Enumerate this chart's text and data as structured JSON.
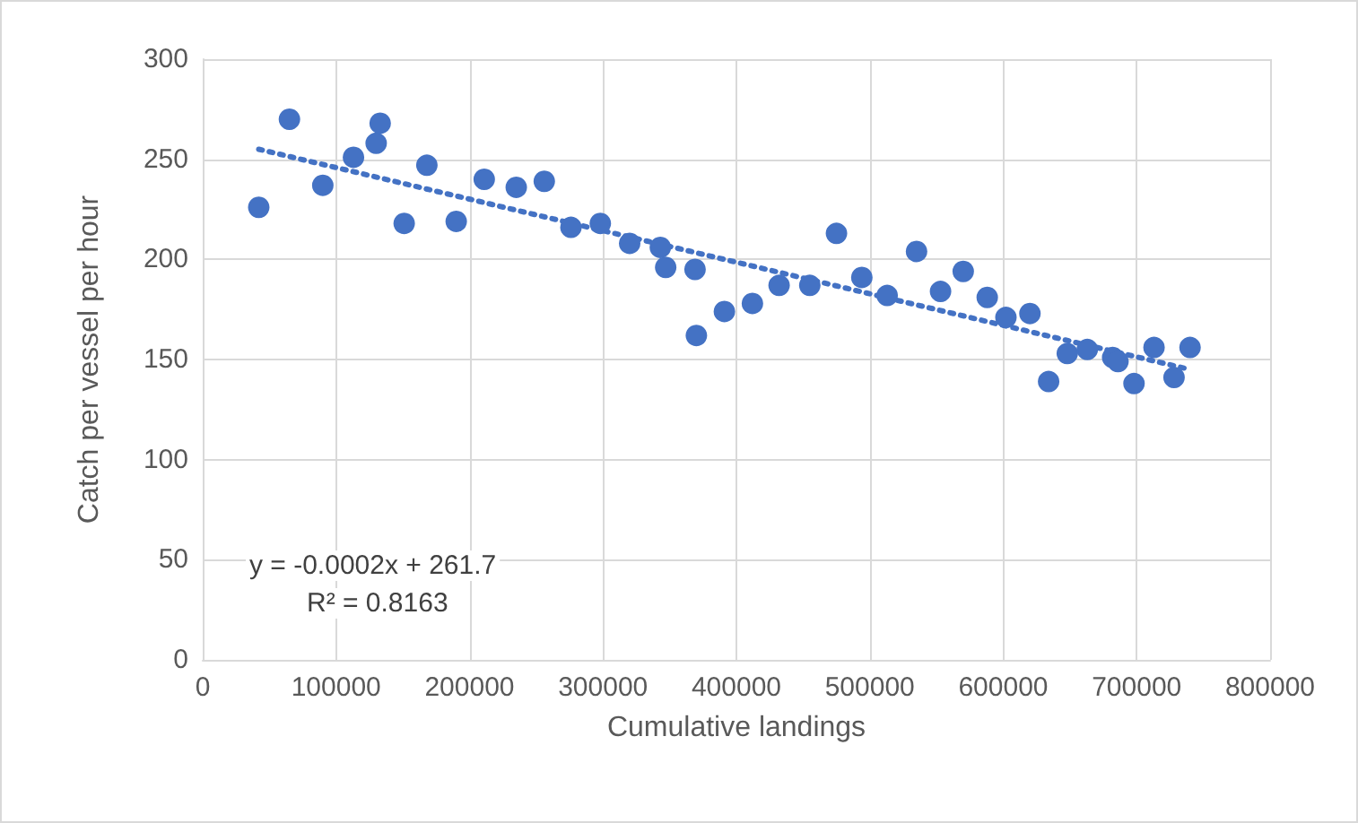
{
  "chart_data": {
    "type": "scatter",
    "xlabel": "Cumulative landings",
    "ylabel": "Catch per vessel per hour",
    "annotations": [
      "y = -0.0002x + 261.7",
      "R² = 0.8163"
    ],
    "xlim": [
      0,
      800000
    ],
    "xticks": [
      0,
      100000,
      200000,
      300000,
      400000,
      500000,
      600000,
      700000,
      800000
    ],
    "ylim": [
      0,
      300
    ],
    "yticks": [
      0,
      50,
      100,
      150,
      200,
      250,
      300
    ],
    "grid": true,
    "marker": "circle",
    "series": [
      {
        "color": "#4472c4",
        "x": [
          42000,
          65000,
          90000,
          113000,
          130000,
          133000,
          151000,
          168000,
          190000,
          211000,
          235000,
          256000,
          276000,
          298000,
          320000,
          343000,
          347000,
          369000,
          370000,
          391000,
          412000,
          432000,
          455000,
          475000,
          494000,
          513000,
          535000,
          553000,
          570000,
          588000,
          602000,
          620000,
          634000,
          648000,
          663000,
          682000,
          686000,
          698000,
          713000,
          728000,
          740000
        ],
        "values": [
          226,
          270,
          237,
          251,
          258,
          268,
          218,
          247,
          219,
          240,
          236,
          239,
          216,
          218,
          208,
          206,
          196,
          195,
          162,
          174,
          178,
          187,
          187,
          213,
          191,
          182,
          204,
          184,
          194,
          181,
          171,
          173,
          139,
          153,
          155,
          151,
          149,
          138,
          156,
          141,
          156
        ]
      },
      {
        "type": "line",
        "color": "#4472c4",
        "line_style": "dotted",
        "marker": "none",
        "x": [
          42000,
          740000
        ],
        "values": [
          255,
          145
        ]
      }
    ]
  }
}
